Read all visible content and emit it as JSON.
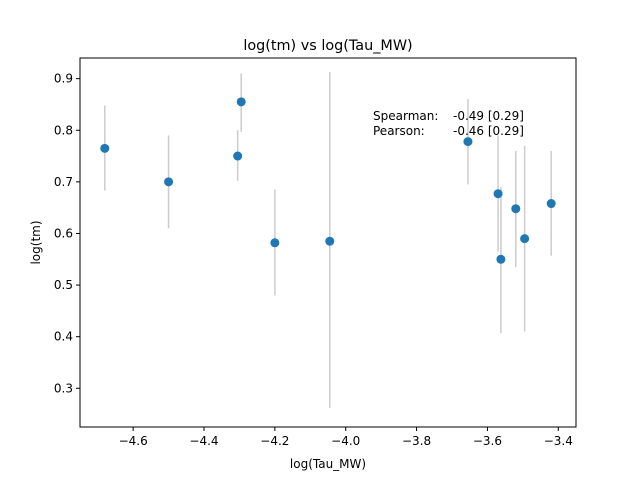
{
  "chart_data": {
    "type": "scatter",
    "title": "log(tm) vs log(Tau_MW)",
    "xlabel": "log(Tau_MW)",
    "ylabel": "log(tm)",
    "xlim": [
      -4.75,
      -3.35
    ],
    "ylim": [
      0.225,
      0.94
    ],
    "xticks": [
      -4.6,
      -4.4,
      -4.2,
      -4.0,
      -3.8,
      -3.6,
      -3.4
    ],
    "xtick_labels": [
      "−4.6",
      "−4.4",
      "−4.2",
      "−4.0",
      "−3.8",
      "−3.6",
      "−3.4"
    ],
    "yticks": [
      0.3,
      0.4,
      0.5,
      0.6,
      0.7,
      0.8,
      0.9
    ],
    "ytick_labels": [
      "0.3",
      "0.4",
      "0.5",
      "0.6",
      "0.7",
      "0.8",
      "0.9"
    ],
    "grid": false,
    "point_color": "#1f77b4",
    "errorbar_color": "#cccccc",
    "points": [
      {
        "x": -4.68,
        "y": 0.765,
        "ylow": 0.683,
        "yhigh": 0.848
      },
      {
        "x": -4.5,
        "y": 0.7,
        "ylow": 0.61,
        "yhigh": 0.79
      },
      {
        "x": -4.305,
        "y": 0.75,
        "ylow": 0.702,
        "yhigh": 0.8
      },
      {
        "x": -4.295,
        "y": 0.855,
        "ylow": 0.797,
        "yhigh": 0.91
      },
      {
        "x": -4.2,
        "y": 0.582,
        "ylow": 0.48,
        "yhigh": 0.685
      },
      {
        "x": -4.045,
        "y": 0.585,
        "ylow": 0.262,
        "yhigh": 0.913
      },
      {
        "x": -3.655,
        "y": 0.778,
        "ylow": 0.695,
        "yhigh": 0.86
      },
      {
        "x": -3.57,
        "y": 0.677,
        "ylow": 0.565,
        "yhigh": 0.79
      },
      {
        "x": -3.562,
        "y": 0.55,
        "ylow": 0.407,
        "yhigh": 0.69
      },
      {
        "x": -3.52,
        "y": 0.648,
        "ylow": 0.535,
        "yhigh": 0.76
      },
      {
        "x": -3.495,
        "y": 0.59,
        "ylow": 0.41,
        "yhigh": 0.77
      },
      {
        "x": -3.42,
        "y": 0.658,
        "ylow": 0.557,
        "yhigh": 0.76
      }
    ],
    "annotations": [
      {
        "label": "Spearman:",
        "value": "-0.49 [0.29]"
      },
      {
        "label": "Pearson:",
        "value": "-0.46 [0.29]"
      }
    ]
  }
}
